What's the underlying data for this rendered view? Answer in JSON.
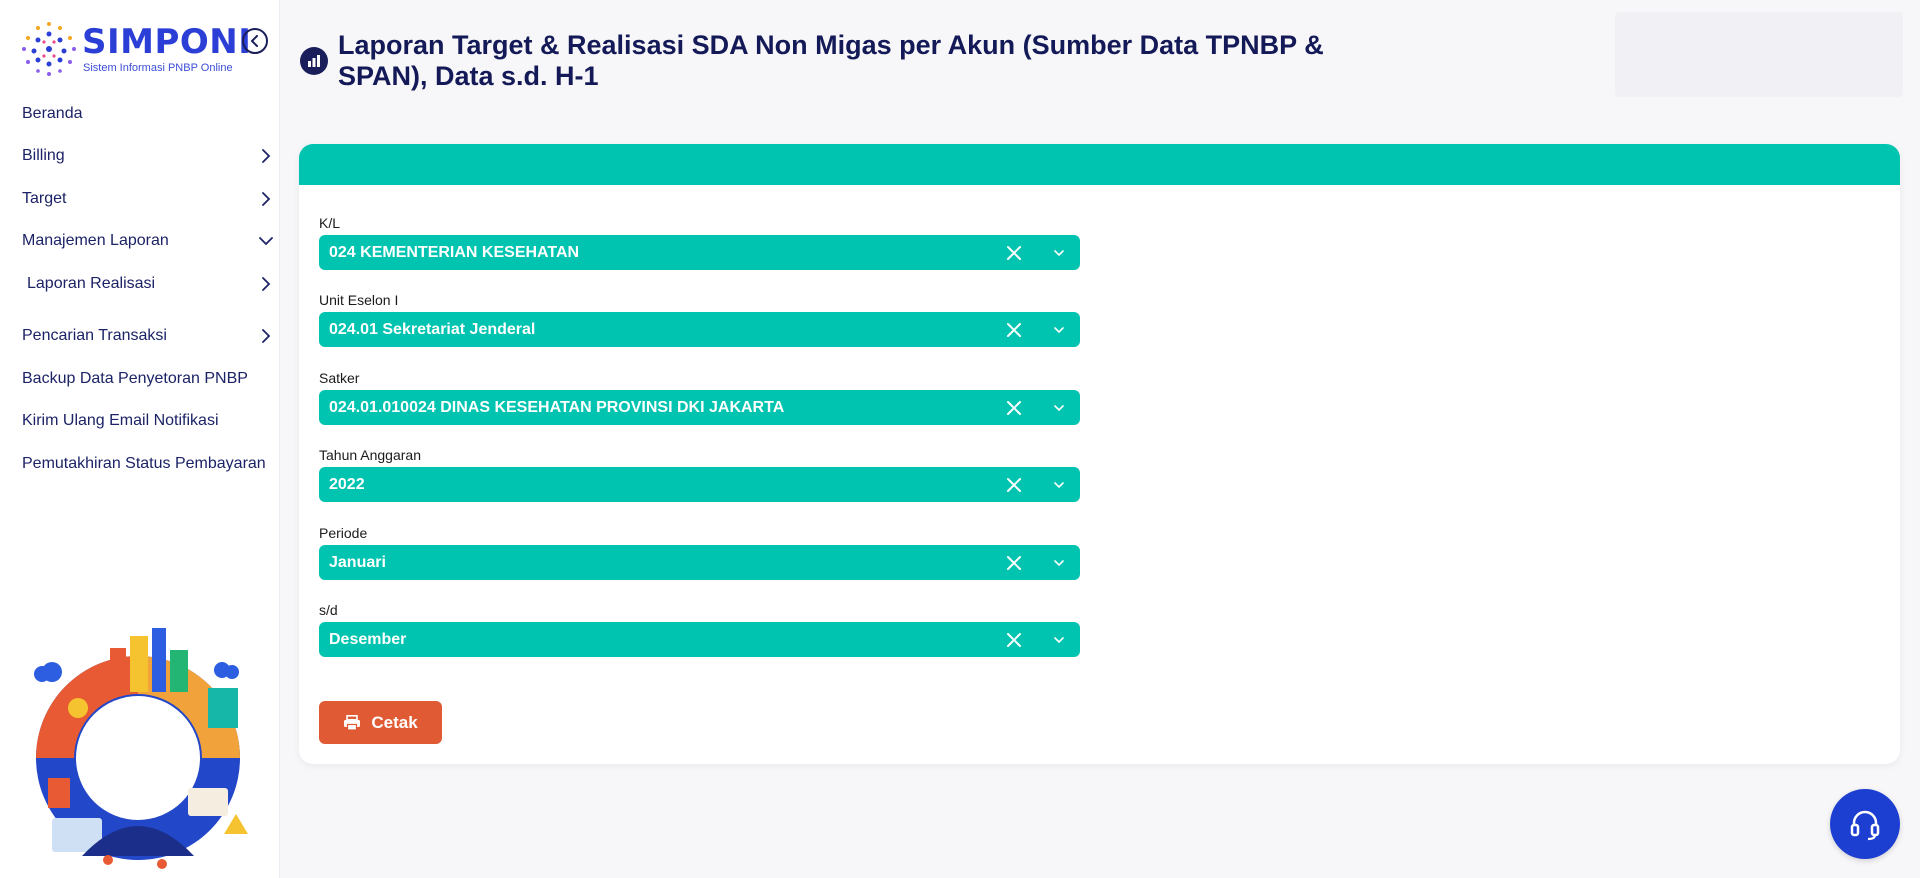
{
  "brand": {
    "name": "SIMPONI",
    "tagline": "Sistem Informasi PNBP Online"
  },
  "sidebar": {
    "items": [
      {
        "label": "Beranda",
        "icon": "none"
      },
      {
        "label": "Billing",
        "icon": "chevron-right-icon"
      },
      {
        "label": "Target",
        "icon": "chevron-right-icon"
      },
      {
        "label": "Manajemen Laporan",
        "icon": "chevron-down-icon"
      },
      {
        "label": "Laporan Realisasi",
        "icon": "chevron-right-icon"
      },
      {
        "label": "Pencarian Transaksi",
        "icon": "chevron-right-icon"
      },
      {
        "label": "Backup Data Penyetoran PNBP",
        "icon": "none"
      },
      {
        "label": "Kirim Ulang Email Notifikasi",
        "icon": "none"
      },
      {
        "label": "Pemutakhiran Status Pembayaran",
        "icon": "none"
      }
    ]
  },
  "page": {
    "title": "Laporan Target & Realisasi SDA Non Migas per Akun (Sumber Data TPNBP & SPAN), Data s.d. H-1",
    "title_icon": "bar-chart-icon"
  },
  "form": {
    "fields": [
      {
        "label": "K/L",
        "value": "024 KEMENTERIAN KESEHATAN"
      },
      {
        "label": "Unit Eselon I",
        "value": "024.01 Sekretariat Jenderal"
      },
      {
        "label": "Satker",
        "value": "024.01.010024 DINAS KESEHATAN PROVINSI DKI JAKARTA"
      },
      {
        "label": "Tahun Anggaran",
        "value": "2022"
      },
      {
        "label": "Periode",
        "value": "Januari"
      },
      {
        "label": "s/d",
        "value": "Desember"
      }
    ],
    "print_label": "Cetak"
  },
  "colors": {
    "accent": "#00c4b0",
    "print_button": "#e05a34",
    "navy": "#1a1f5c",
    "brand_blue": "#2b3fd6"
  }
}
